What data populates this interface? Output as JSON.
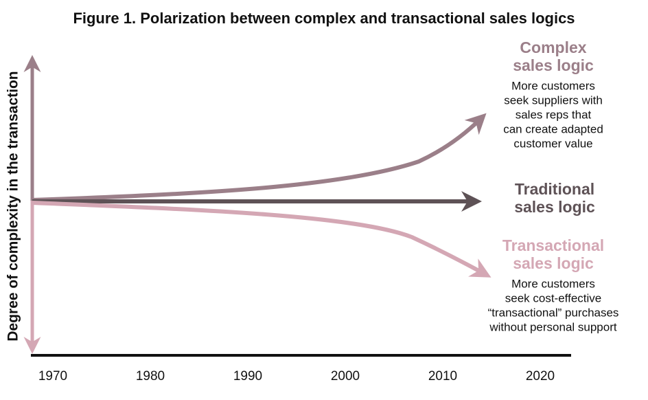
{
  "title": "Figure 1. Polarization between complex and transactional sales logics",
  "y_axis_label": "Degree of complexity in the transaction",
  "x_axis_labels": [
    "1970",
    "1980",
    "1990",
    "2000",
    "2010",
    "2020"
  ],
  "branches": [
    {
      "heading": [
        "Complex",
        "sales logic"
      ],
      "description": [
        "More customers",
        "seek suppliers with",
        "sales reps that",
        "can create adapted",
        "customer value"
      ]
    },
    {
      "heading": [
        "Traditional",
        "sales logic"
      ],
      "description": []
    },
    {
      "heading": [
        "Transactional",
        "sales logic"
      ],
      "description": [
        "More customers",
        "seek cost-effective",
        "“transactional” purchases",
        "without personal support"
      ]
    }
  ]
}
